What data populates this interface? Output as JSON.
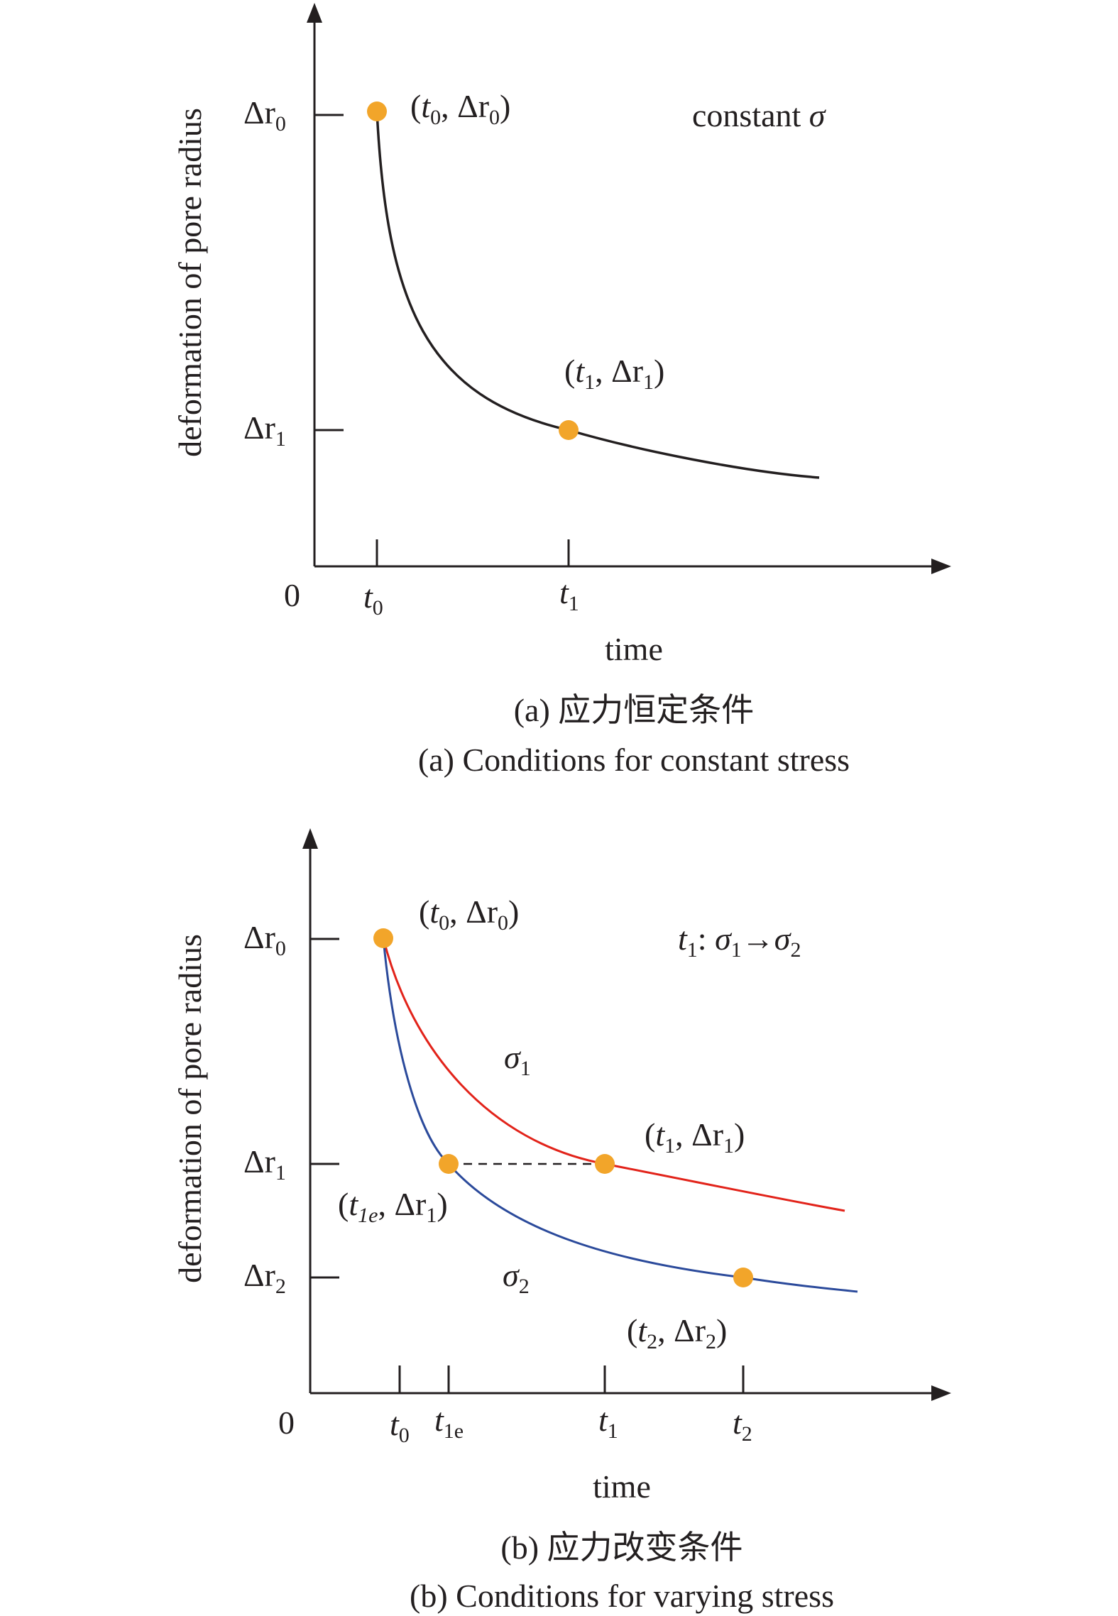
{
  "panel_a": {
    "y_axis_label": "deformation of pore radius",
    "x_axis_label": "time",
    "origin_label": "0",
    "y_ticks": [
      {
        "label_sym": "Δr",
        "label_sub": "0"
      },
      {
        "label_sym": "Δr",
        "label_sub": "1"
      }
    ],
    "x_ticks": [
      {
        "label_sym": "t",
        "label_sub": "0"
      },
      {
        "label_sym": "t",
        "label_sub": "1"
      }
    ],
    "annotation_prefix": "constant ",
    "annotation_symbol": "σ",
    "point_labels": [
      {
        "t": "t",
        "t_sub": "0",
        "r": "Δr",
        "r_sub": "0"
      },
      {
        "t": "t",
        "t_sub": "1",
        "r": "Δr",
        "r_sub": "1"
      }
    ],
    "caption_cn": "(a) 应力恒定条件",
    "caption_en": "(a) Conditions for constant stress"
  },
  "panel_b": {
    "y_axis_label": "deformation of pore radius",
    "x_axis_label": "time",
    "origin_label": "0",
    "y_ticks": [
      {
        "label_sym": "Δr",
        "label_sub": "0"
      },
      {
        "label_sym": "Δr",
        "label_sub": "1"
      },
      {
        "label_sym": "Δr",
        "label_sub": "2"
      }
    ],
    "x_ticks": [
      {
        "label_sym": "t",
        "label_sub": "0"
      },
      {
        "label_sym": "t",
        "label_sub": "1e"
      },
      {
        "label_sym": "t",
        "label_sub": "1"
      },
      {
        "label_sym": "t",
        "label_sub": "2"
      }
    ],
    "annotation": {
      "t": "t",
      "t_sub": "1",
      "sep": ": ",
      "s1": "σ",
      "s1_sub": "1",
      "arrow": "→",
      "s2": "σ",
      "s2_sub": "2"
    },
    "curve_labels": [
      {
        "sym": "σ",
        "sub": "1"
      },
      {
        "sym": "σ",
        "sub": "2"
      }
    ],
    "point_labels": [
      {
        "t": "t",
        "t_sub": "0",
        "r": "Δr",
        "r_sub": "0"
      },
      {
        "t": "t",
        "t_sub": "1",
        "r": "Δr",
        "r_sub": "1"
      },
      {
        "t": "t",
        "t_sub": "1e",
        "r": "Δr",
        "r_sub": "1"
      },
      {
        "t": "t",
        "t_sub": "2",
        "r": "Δr",
        "r_sub": "2"
      }
    ],
    "caption_cn": "(b) 应力改变条件",
    "caption_en": "(b) Conditions for varying stress"
  },
  "colors": {
    "axis": "#231f20",
    "point": "#f2a52a",
    "curve_sigma1": "#e2231a",
    "curve_sigma2": "#2b4a9b",
    "curve_constant": "#231f20"
  }
}
